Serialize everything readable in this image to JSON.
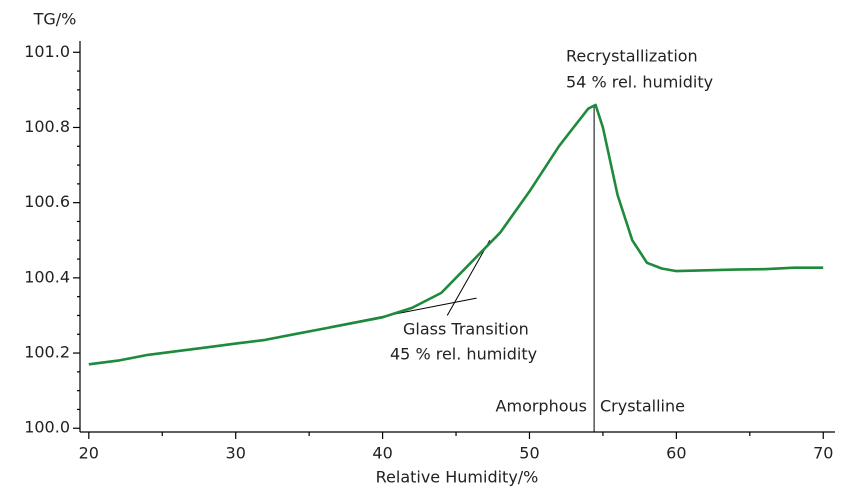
{
  "chart_data": {
    "type": "line",
    "ylabel": "TG/%",
    "xlabel": "Relative Humidity/%",
    "xlim": [
      19.4,
      70.8
    ],
    "ylim": [
      99.99,
      101.03
    ],
    "xticks": [
      20,
      30,
      40,
      50,
      60,
      70
    ],
    "yticks": [
      {
        "value": 100,
        "label": "100.0"
      },
      100.2,
      100.4,
      100.6,
      100.8,
      {
        "value": 101,
        "label": "101.0"
      }
    ],
    "xminorticks": [
      25,
      35,
      45,
      55,
      65
    ],
    "yminorticks": [
      100.05,
      100.1,
      100.15,
      100.25,
      100.3,
      100.35,
      100.45,
      100.5,
      100.55,
      100.65,
      100.7,
      100.75,
      100.85,
      100.9,
      100.95
    ],
    "series": [
      {
        "name": "TG",
        "color": "#1e8a3c",
        "x": [
          20,
          22,
          24,
          26,
          28,
          30,
          32,
          34,
          36,
          38,
          40,
          42,
          44,
          46,
          48,
          50,
          52,
          53,
          54,
          54.5,
          55,
          56,
          57,
          58,
          59,
          60,
          62,
          64,
          66,
          68,
          70
        ],
        "values": [
          100.17,
          100.18,
          100.195,
          100.205,
          100.215,
          100.225,
          100.235,
          100.25,
          100.265,
          100.28,
          100.295,
          100.32,
          100.36,
          100.44,
          100.52,
          100.63,
          100.75,
          100.8,
          100.85,
          100.86,
          100.8,
          100.62,
          100.5,
          100.44,
          100.425,
          100.418,
          100.42,
          100.422,
          100.423,
          100.427,
          100.427
        ]
      }
    ],
    "guides": [
      {
        "x": [
          36.4,
          46.4
        ],
        "y": [
          100.27,
          100.346
        ]
      },
      {
        "x": [
          44.4,
          47.3
        ],
        "y": [
          100.3,
          100.5
        ]
      },
      {
        "x": [
          54.4,
          54.4
        ],
        "y": [
          100.86,
          99.99
        ]
      }
    ],
    "annotations": {
      "recrystallization": [
        "Recrystallization",
        "54 % rel. humidity"
      ],
      "glass_transition": [
        "Glass Transition",
        "45 % rel. humidity"
      ],
      "amorphous": "Amorphous",
      "crystalline": "Crystalline"
    }
  }
}
